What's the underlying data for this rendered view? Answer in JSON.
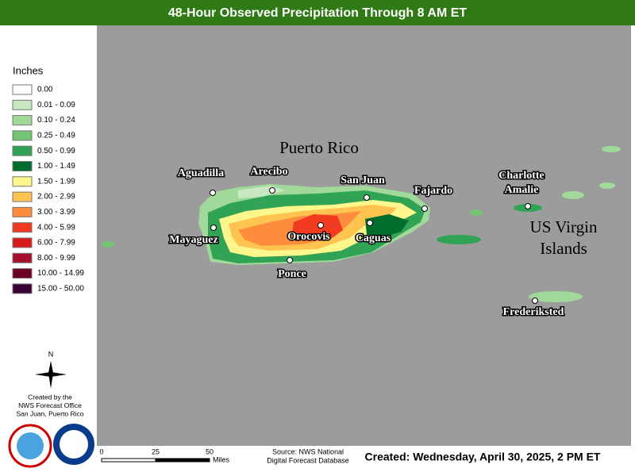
{
  "header": {
    "title": "48-Hour Observed Precipitation Through 8 AM ET"
  },
  "legend": {
    "title": "Inches",
    "items": [
      {
        "label": "0.00",
        "color": "#ffffff"
      },
      {
        "label": "0.01 - 0.09",
        "color": "#c7e8c0"
      },
      {
        "label": "0.10 - 0.24",
        "color": "#a1d99b"
      },
      {
        "label": "0.25 - 0.49",
        "color": "#74c476"
      },
      {
        "label": "0.50 - 0.99",
        "color": "#31a354"
      },
      {
        "label": "1.00 - 1.49",
        "color": "#006d2c"
      },
      {
        "label": "1.50 - 1.99",
        "color": "#fcf68c"
      },
      {
        "label": "2.00 - 2.99",
        "color": "#fec44f"
      },
      {
        "label": "3.00 - 3.99",
        "color": "#fd8d3c"
      },
      {
        "label": "4.00 - 5.99",
        "color": "#f03b20"
      },
      {
        "label": "6.00 - 7.99",
        "color": "#d7191c"
      },
      {
        "label": "8.00 - 9.99",
        "color": "#a50f2d"
      },
      {
        "label": "10.00 - 14.99",
        "color": "#6b0026"
      },
      {
        "label": "15.00 - 50.00",
        "color": "#3b0035"
      }
    ]
  },
  "compass": "N",
  "credit": [
    "Created by the",
    "NWS Forecast Office",
    "San Juan, Puerto Rico"
  ],
  "map": {
    "region_labels": [
      {
        "lines": [
          "Puerto Rico"
        ]
      },
      {
        "lines": [
          "US Virgin",
          "Islands"
        ]
      }
    ],
    "cities": [
      {
        "lines": [
          "Aguadilla"
        ]
      },
      {
        "lines": [
          "Arecibo"
        ]
      },
      {
        "lines": [
          "San Juan"
        ]
      },
      {
        "lines": [
          "Fajardo"
        ]
      },
      {
        "lines": [
          "Charlotte",
          "Amalie"
        ]
      },
      {
        "lines": [
          "Mayaguez"
        ]
      },
      {
        "lines": [
          "Orocovis"
        ]
      },
      {
        "lines": [
          "Caguas"
        ]
      },
      {
        "lines": [
          "Ponce"
        ]
      },
      {
        "lines": [
          "Frederiksted"
        ]
      }
    ]
  },
  "scale": {
    "ticks": [
      "0",
      "25",
      "50"
    ],
    "unit": "Miles"
  },
  "source": [
    "Source: NWS National",
    "Digital Forecast Database"
  ],
  "created": "Created: Wednesday, April 30, 2025, 2 PM ET"
}
